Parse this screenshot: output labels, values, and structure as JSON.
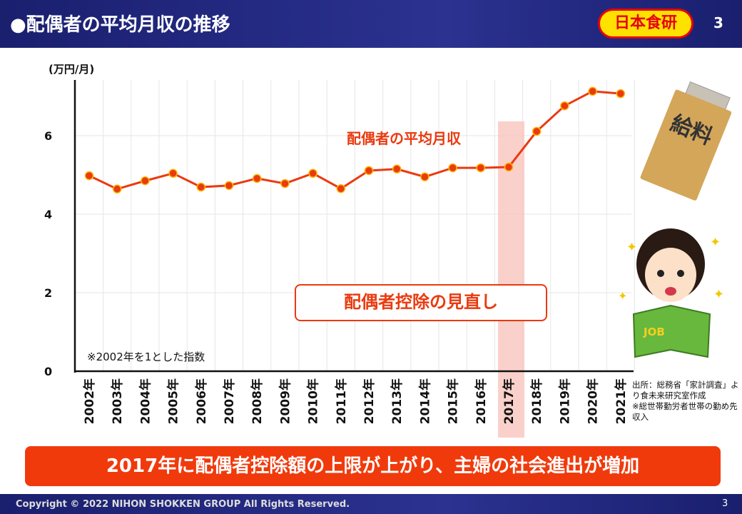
{
  "header": {
    "title": "●配偶者の平均月収の推移",
    "logo": "日本食研",
    "page": "3"
  },
  "chart_data": {
    "type": "line",
    "title": "配偶者の平均月収の推移",
    "ylabel": "(万円/月)",
    "xlabel": "",
    "ylim": [
      0,
      7.4
    ],
    "yticks": [
      0,
      2,
      4,
      6
    ],
    "grid": true,
    "categories": [
      "2002年",
      "2003年",
      "2004年",
      "2005年",
      "2006年",
      "2007年",
      "2008年",
      "2009年",
      "2010年",
      "2011年",
      "2012年",
      "2013年",
      "2014年",
      "2015年",
      "2016年",
      "2017年",
      "2018年",
      "2019年",
      "2020年",
      "2021年"
    ],
    "series": [
      {
        "name": "配偶者の平均月収",
        "color": "#ea3a0f",
        "values": [
          4.98,
          4.64,
          4.85,
          5.04,
          4.69,
          4.73,
          4.91,
          4.78,
          5.04,
          4.65,
          5.11,
          5.15,
          4.95,
          5.18,
          5.18,
          5.2,
          6.11,
          6.76,
          7.13,
          7.07
        ]
      }
    ],
    "highlight_category": "2017年",
    "annotations": {
      "callout": "配偶者控除の見直し",
      "note": "※2002年を1とした指数"
    }
  },
  "source": [
    "出所：総務省「家計調査」より食未来研究室作成",
    "※総世帯勤労者世帯の勤め先収入"
  ],
  "banner": "2017年に配偶者控除額の上限が上がり、主婦の社会進出が増加",
  "footer": {
    "copyright": "Copyright © 2022 NIHON SHOKKEN GROUP All Rights Reserved.",
    "page": "3"
  },
  "illustrations": {
    "envelope_text": "給料",
    "book_text": "JOB"
  }
}
